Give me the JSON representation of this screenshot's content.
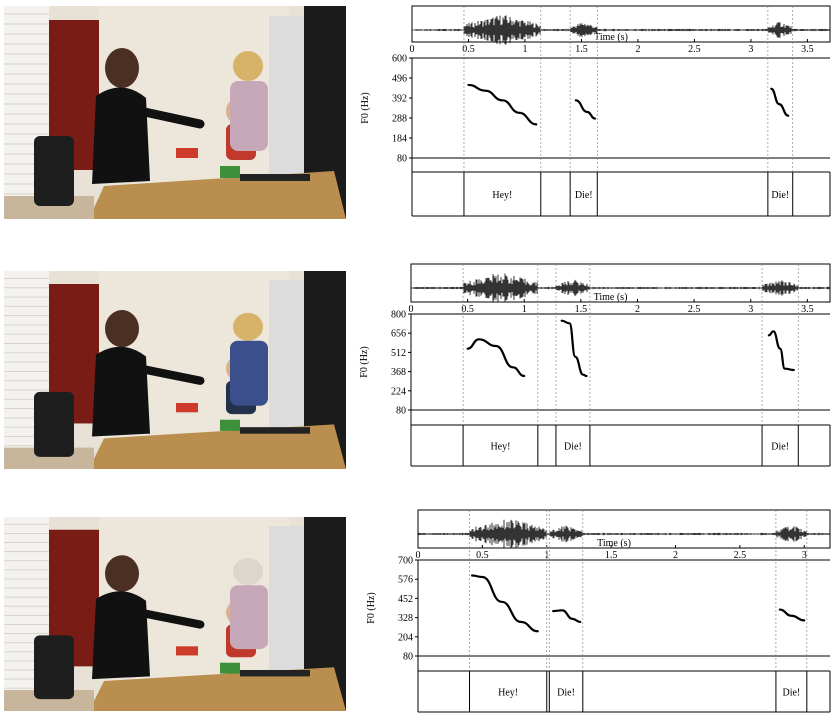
{
  "figure": {
    "rows": [
      {
        "photo": {
          "icon": "scene-adult-points-toy-child-on-lap"
        },
        "axis_label": "Time (s)",
        "x_ticks": [
          "0",
          "0.5",
          "1",
          "1.5",
          "2",
          "2.5",
          "3",
          "3.5"
        ],
        "f0_label": "F0 (Hz)",
        "f0_ticks": [
          "600",
          "496",
          "392",
          "288",
          "184",
          "80"
        ],
        "words": [
          "Hey!",
          "Die!",
          "Die!"
        ]
      },
      {
        "photo": {
          "icon": "scene-adult-points-toy-child-on-lap"
        },
        "axis_label": "Time (s)",
        "x_ticks": [
          "0",
          "0.5",
          "1",
          "1.5",
          "2",
          "2.5",
          "3",
          "3.5"
        ],
        "f0_label": "F0 (Hz)",
        "f0_ticks": [
          "800",
          "656",
          "512",
          "368",
          "224",
          "80"
        ],
        "words": [
          "Hey!",
          "Die!",
          "Die!"
        ]
      },
      {
        "photo": {
          "icon": "scene-adult-points-toy-child-on-lap"
        },
        "axis_label": "Time (s)",
        "x_ticks": [
          "0",
          "0.5",
          "1",
          "1.5",
          "2",
          "2.5",
          "3"
        ],
        "f0_label": "F0 (Hz)",
        "f0_ticks": [
          "700",
          "576",
          "452",
          "328",
          "204",
          "80"
        ],
        "words": [
          "Hey!",
          "Die!",
          "Die!"
        ]
      }
    ]
  },
  "chart_data": [
    {
      "type": "line",
      "x_label": "Time (s)",
      "y_label": "F0 (Hz)",
      "xlim": [
        0,
        3.7
      ],
      "ylim": [
        80,
        600
      ],
      "segments": [
        {
          "label": "Hey!",
          "start": 0.46,
          "end": 1.14,
          "f0": [
            [
              0.5,
              460
            ],
            [
              0.65,
              430
            ],
            [
              0.8,
              380
            ],
            [
              0.95,
              315
            ],
            [
              1.1,
              255
            ]
          ]
        },
        {
          "label": "Die!",
          "start": 1.4,
          "end": 1.64,
          "f0": [
            [
              1.45,
              380
            ],
            [
              1.55,
              320
            ],
            [
              1.62,
              285
            ]
          ]
        },
        {
          "label": "Die!",
          "start": 3.15,
          "end": 3.37,
          "f0": [
            [
              3.18,
              440
            ],
            [
              3.25,
              360
            ],
            [
              3.33,
              300
            ]
          ]
        }
      ]
    },
    {
      "type": "line",
      "x_label": "Time (s)",
      "y_label": "F0 (Hz)",
      "xlim": [
        0,
        3.7
      ],
      "ylim": [
        80,
        800
      ],
      "segments": [
        {
          "label": "Hey!",
          "start": 0.46,
          "end": 1.12,
          "f0": [
            [
              0.5,
              540
            ],
            [
              0.6,
              610
            ],
            [
              0.75,
              560
            ],
            [
              0.9,
              400
            ],
            [
              1.0,
              335
            ]
          ]
        },
        {
          "label": "Die!",
          "start": 1.28,
          "end": 1.58,
          "f0": [
            [
              1.33,
              750
            ],
            [
              1.4,
              730
            ],
            [
              1.45,
              480
            ],
            [
              1.52,
              345
            ],
            [
              1.55,
              335
            ]
          ]
        },
        {
          "label": "Die!",
          "start": 3.1,
          "end": 3.42,
          "f0": [
            [
              3.16,
              640
            ],
            [
              3.2,
              670
            ],
            [
              3.26,
              540
            ],
            [
              3.3,
              390
            ],
            [
              3.38,
              380
            ]
          ]
        }
      ]
    },
    {
      "type": "line",
      "x_label": "Time (s)",
      "y_label": "F0 (Hz)",
      "xlim": [
        0,
        3.2
      ],
      "ylim": [
        80,
        700
      ],
      "segments": [
        {
          "label": "Hey!",
          "start": 0.4,
          "end": 1.0,
          "f0": [
            [
              0.42,
              600
            ],
            [
              0.5,
              590
            ],
            [
              0.65,
              430
            ],
            [
              0.8,
              300
            ],
            [
              0.93,
              240
            ]
          ]
        },
        {
          "label": "Die!",
          "start": 1.02,
          "end": 1.28,
          "f0": [
            [
              1.05,
              370
            ],
            [
              1.12,
              375
            ],
            [
              1.2,
              320
            ],
            [
              1.26,
              300
            ]
          ]
        },
        {
          "label": "Die!",
          "start": 2.78,
          "end": 3.02,
          "f0": [
            [
              2.81,
              380
            ],
            [
              2.9,
              340
            ],
            [
              3.0,
              310
            ]
          ]
        }
      ]
    }
  ]
}
